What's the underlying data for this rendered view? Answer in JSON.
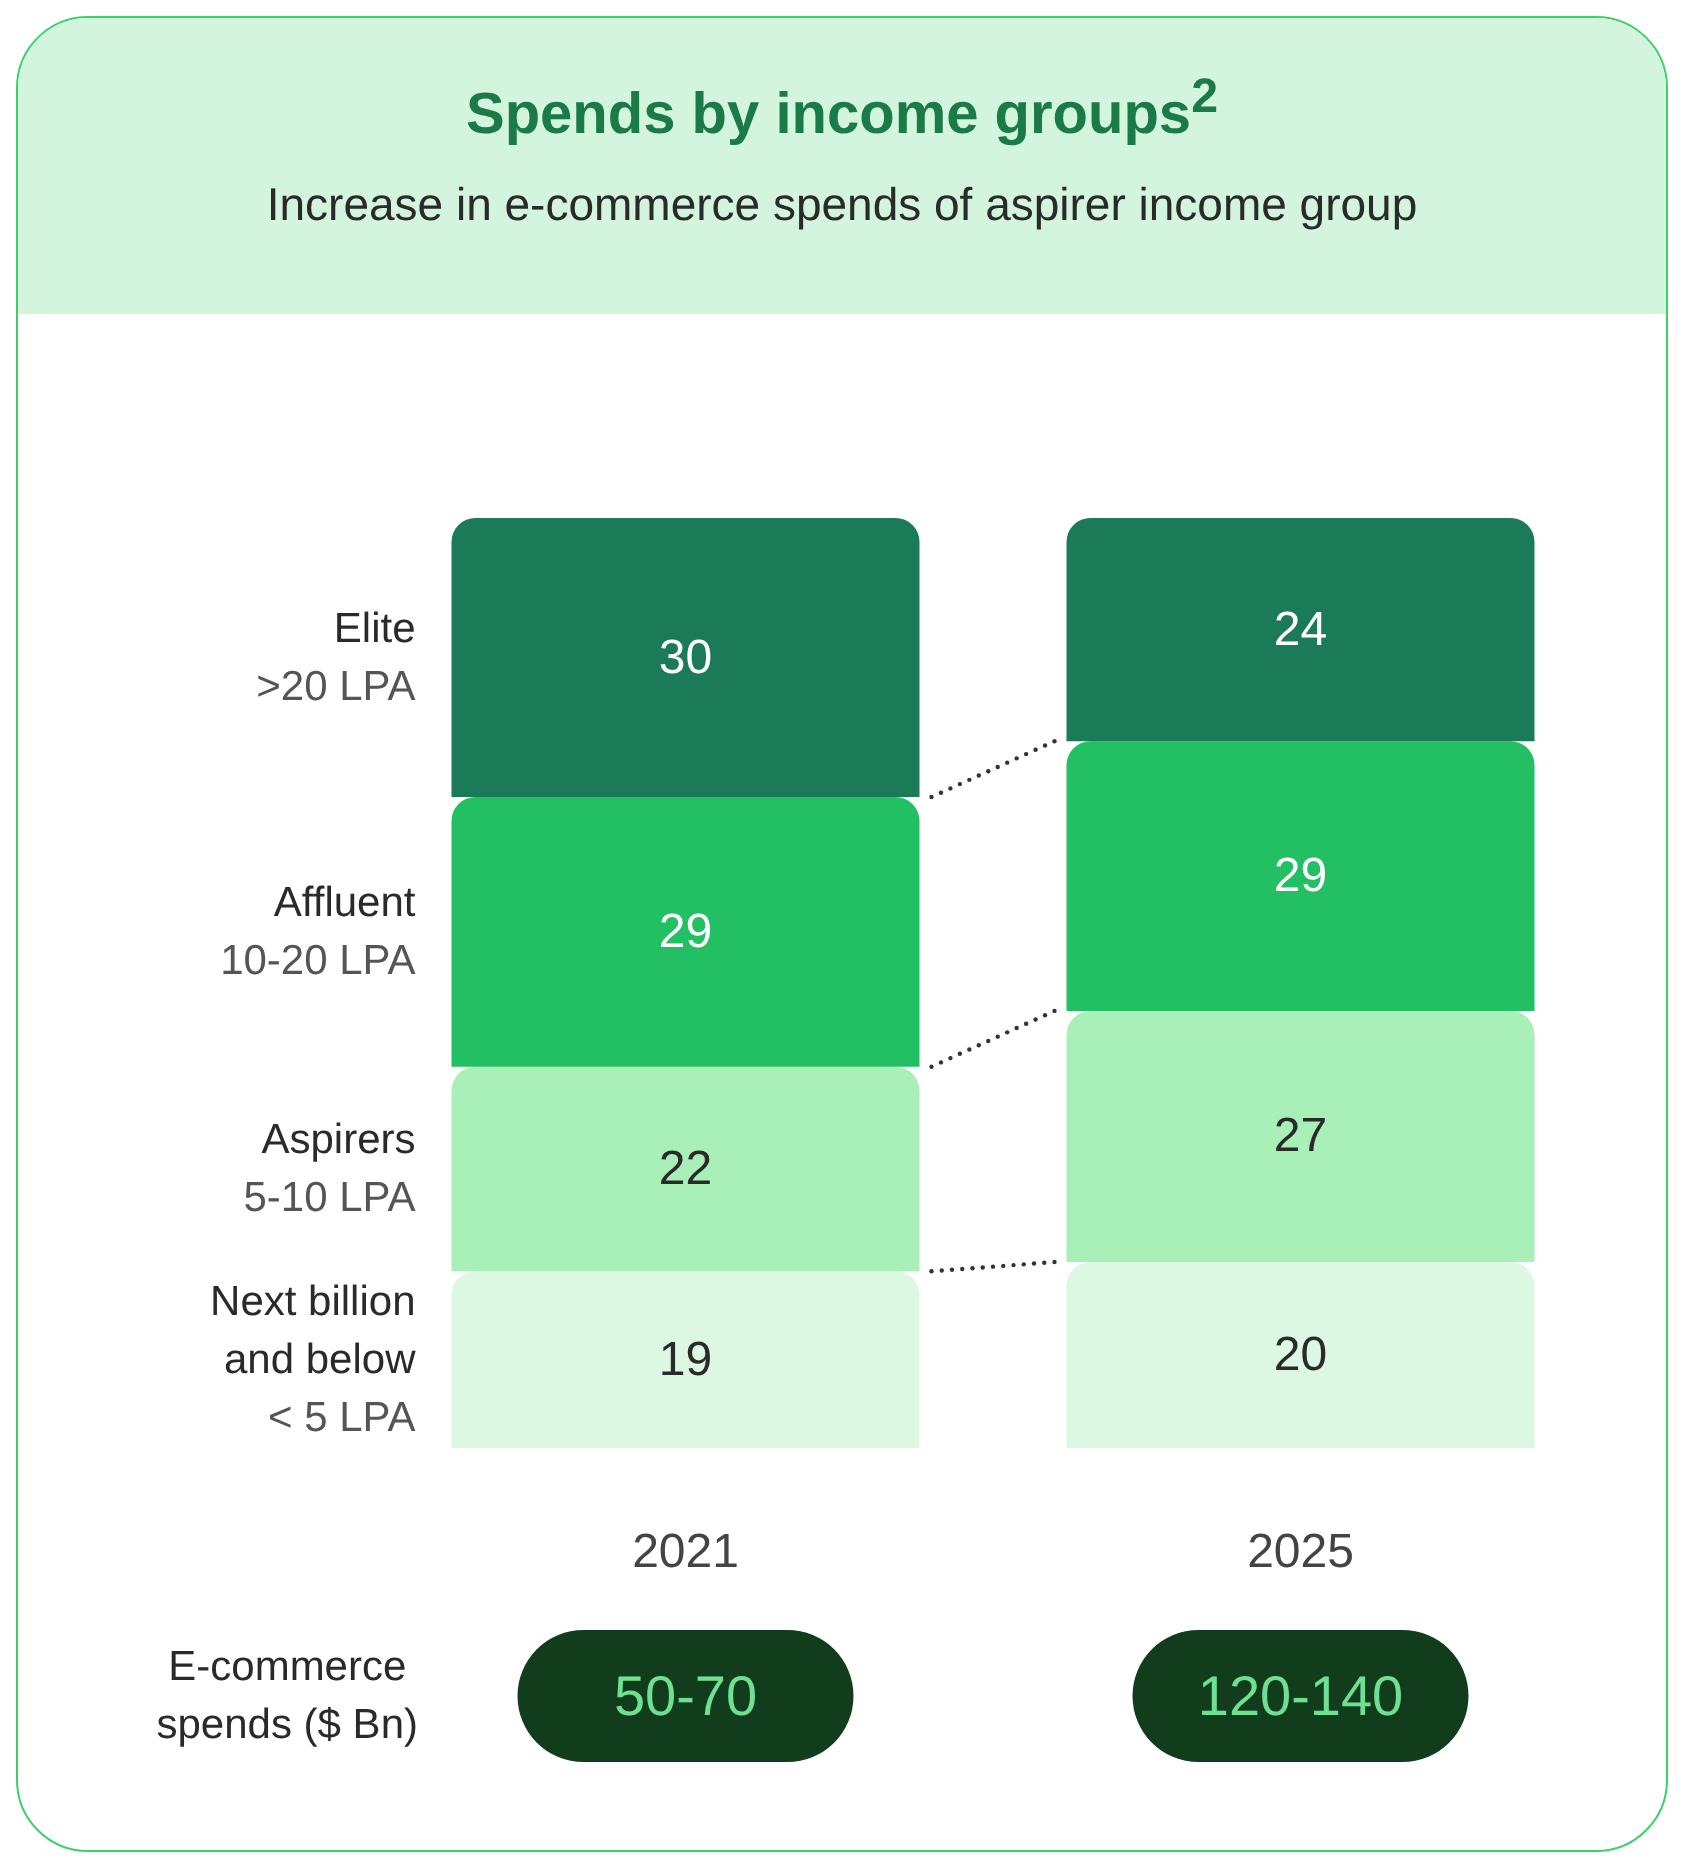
{
  "chart_data": {
    "type": "bar",
    "title": "Spends by income groups$^{2}$",
    "subtitle": "Increase in e-commerce spends of aspirer income group",
    "categories": [
      "2021",
      "2025"
    ],
    "stacked": true,
    "data_labels": true,
    "legend": false,
    "grid": false,
    "series": [
      {
        "name": "Next billion\nand below\n< 5 LPA",
        "color": "#dcf7e2",
        "values": [
          19,
          20
        ]
      },
      {
        "name": "Aspirers\n5-10 LPA",
        "color": "#a8f0b8",
        "values": [
          22,
          27
        ]
      },
      {
        "name": "Affluent\n10-20 LPA",
        "color": "#22c063",
        "values": [
          29,
          29
        ]
      },
      {
        "name": "Elite\n>20 LPA",
        "color": "#1b7b58",
        "values": [
          30,
          24
        ]
      }
    ],
    "annotations": [
      "E-commerce spends ($ Bn)",
      "50-70",
      "120-140"
    ]
  }
}
